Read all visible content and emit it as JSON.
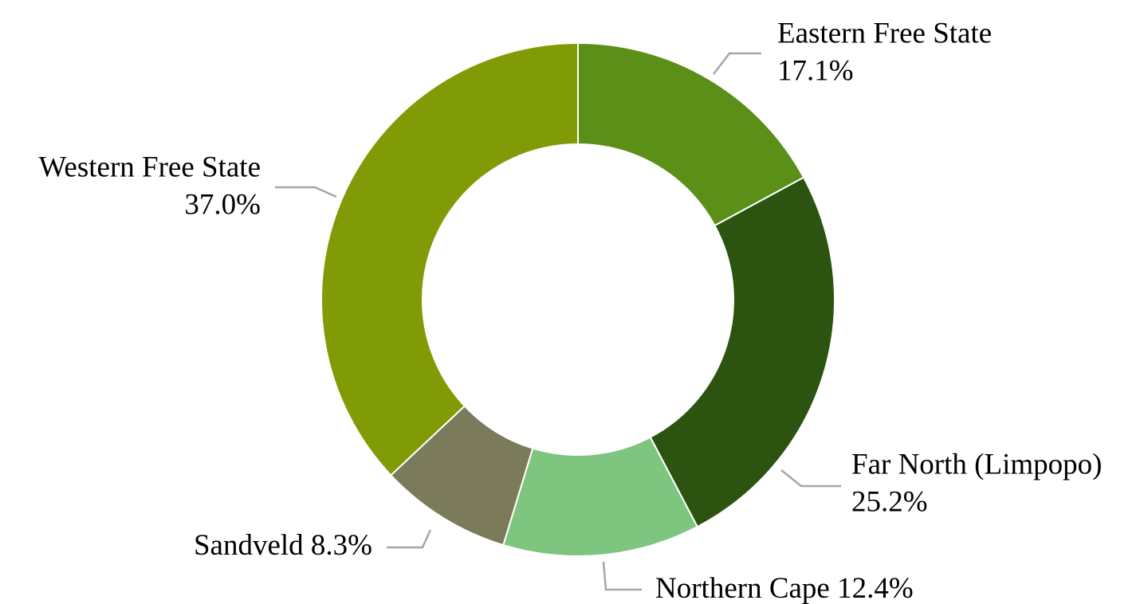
{
  "chart_data": {
    "type": "donut",
    "categories": [
      "Eastern Free State",
      "Far North (Limpopo)",
      "Northern Cape",
      "Sandveld",
      "Western Free State"
    ],
    "values": [
      17.1,
      25.2,
      12.4,
      8.3,
      37.0
    ],
    "value_labels": [
      "17.1%",
      "25.2%",
      "12.4%",
      "8.3%",
      "37.0%"
    ],
    "colors": [
      "#5b8f18",
      "#2d5310",
      "#7ec580",
      "#7b7a5a",
      "#819b07"
    ]
  }
}
